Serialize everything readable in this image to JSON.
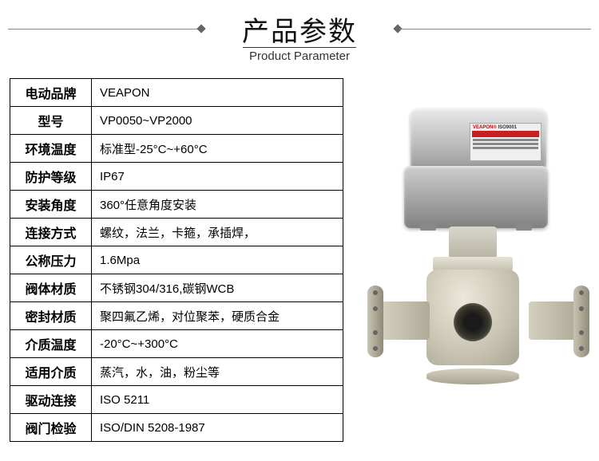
{
  "header": {
    "title_cn": "产品参数",
    "title_en": "Product Parameter"
  },
  "table": {
    "rows": [
      {
        "label": "电动品牌",
        "value": "VEAPON"
      },
      {
        "label": "型号",
        "value": "VP0050~VP2000"
      },
      {
        "label": "环境温度",
        "value": "标准型-25°C~+60°C"
      },
      {
        "label": "防护等级",
        "value": "IP67"
      },
      {
        "label": "安装角度",
        "value": "360°任意角度安装"
      },
      {
        "label": "连接方式",
        "value": "螺纹，法兰，卡箍，承插焊，"
      },
      {
        "label": "公称压力",
        "value": "1.6Mpa"
      },
      {
        "label": "阀体材质",
        "value": "不锈钢304/316,碳钢WCB"
      },
      {
        "label": "密封材质",
        "value": "聚四氟乙烯，对位聚苯，硬质合金"
      },
      {
        "label": "介质温度",
        "value": "-20°C~+300°C"
      },
      {
        "label": "适用介质",
        "value": "蒸汽，水，油，粉尘等"
      },
      {
        "label": "驱动连接",
        "value": "ISO 5211"
      },
      {
        "label": "阀门检验",
        "value": "ISO/DIN  5208-1987"
      }
    ]
  },
  "product_image": {
    "nameplate_brand": "VEAPON",
    "nameplate_cert": "ISO9001"
  },
  "colors": {
    "border": "#000000",
    "text": "#000000",
    "background": "#ffffff",
    "brand_red": "#c82020"
  }
}
